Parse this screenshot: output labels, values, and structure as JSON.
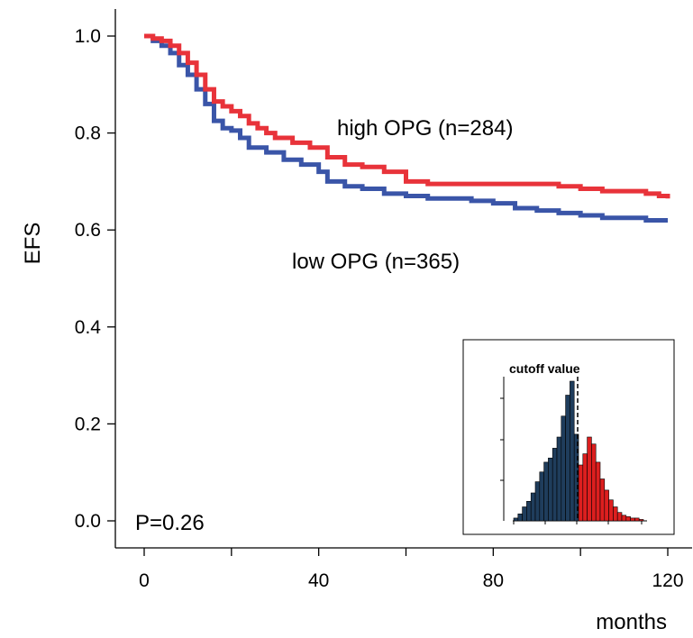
{
  "chart_data": [
    {
      "type": "line",
      "title": "",
      "xlabel": "months",
      "ylabel": "EFS",
      "xlim": [
        0,
        120
      ],
      "ylim": [
        0.0,
        1.0
      ],
      "x_ticks": [
        0,
        40,
        80,
        120
      ],
      "x_tick_labels": [
        "0",
        "40",
        "80",
        "120"
      ],
      "x_minor_ticks": [
        20,
        60,
        100
      ],
      "y_ticks": [
        0.0,
        0.2,
        0.4,
        0.6,
        0.8,
        1.0
      ],
      "y_tick_labels": [
        "0.0",
        "0.2",
        "0.4",
        "0.6",
        "0.8",
        "1.0"
      ],
      "grid": false,
      "step": true,
      "series": [
        {
          "name": "high OPG  (n=284)",
          "color": "#e8333a",
          "x": [
            0,
            2,
            4,
            6,
            8,
            10,
            12,
            14,
            16,
            18,
            20,
            22,
            24,
            26,
            28,
            30,
            34,
            38,
            42,
            46,
            50,
            55,
            60,
            65,
            70,
            80,
            90,
            95,
            100,
            105,
            110,
            115,
            118,
            120
          ],
          "y": [
            1.0,
            0.995,
            0.99,
            0.98,
            0.965,
            0.945,
            0.92,
            0.89,
            0.865,
            0.855,
            0.845,
            0.835,
            0.82,
            0.81,
            0.8,
            0.79,
            0.78,
            0.77,
            0.75,
            0.735,
            0.73,
            0.72,
            0.7,
            0.695,
            0.695,
            0.695,
            0.695,
            0.69,
            0.685,
            0.68,
            0.68,
            0.675,
            0.67,
            0.665
          ]
        },
        {
          "name": "low OPG  (n=365)",
          "color": "#3a55a8",
          "x": [
            0,
            2,
            4,
            6,
            8,
            10,
            12,
            14,
            16,
            18,
            20,
            22,
            24,
            28,
            32,
            36,
            40,
            42,
            46,
            50,
            55,
            60,
            65,
            70,
            75,
            80,
            85,
            90,
            95,
            100,
            105,
            110,
            115,
            120
          ],
          "y": [
            1.0,
            0.99,
            0.98,
            0.965,
            0.94,
            0.92,
            0.89,
            0.86,
            0.825,
            0.81,
            0.805,
            0.79,
            0.77,
            0.76,
            0.745,
            0.735,
            0.72,
            0.7,
            0.69,
            0.685,
            0.675,
            0.67,
            0.665,
            0.665,
            0.66,
            0.655,
            0.645,
            0.64,
            0.635,
            0.63,
            0.625,
            0.625,
            0.62,
            0.62
          ]
        }
      ],
      "annotations": [
        {
          "text": "high OPG  (n=284)",
          "series": "high OPG  (n=284)"
        },
        {
          "text": "low OPG  (n=365)",
          "series": "low OPG  (n=365)"
        },
        {
          "text": "P=0.26"
        }
      ]
    },
    {
      "type": "bar",
      "title": "cutoff value",
      "xlabel": "",
      "ylabel": "",
      "cutoff_bin": 15,
      "low_color": "#1f3d5c",
      "high_color": "#dd1f1f",
      "categories": [
        1,
        2,
        3,
        4,
        5,
        6,
        7,
        8,
        9,
        10,
        11,
        12,
        13,
        14,
        15,
        16,
        17,
        18,
        19,
        20,
        21,
        22,
        23,
        24,
        25,
        26,
        27,
        28,
        29,
        30
      ],
      "values": [
        2,
        5,
        10,
        14,
        20,
        28,
        35,
        42,
        45,
        52,
        60,
        75,
        90,
        100,
        62,
        40,
        48,
        60,
        55,
        42,
        30,
        22,
        15,
        10,
        6,
        4,
        3,
        2,
        2,
        1
      ]
    }
  ],
  "labels": {
    "high_annotation": "high OPG  (n=284)",
    "low_annotation": "low OPG  (n=365)",
    "p_value": "P=0.26",
    "inset_title": "cutoff value"
  }
}
